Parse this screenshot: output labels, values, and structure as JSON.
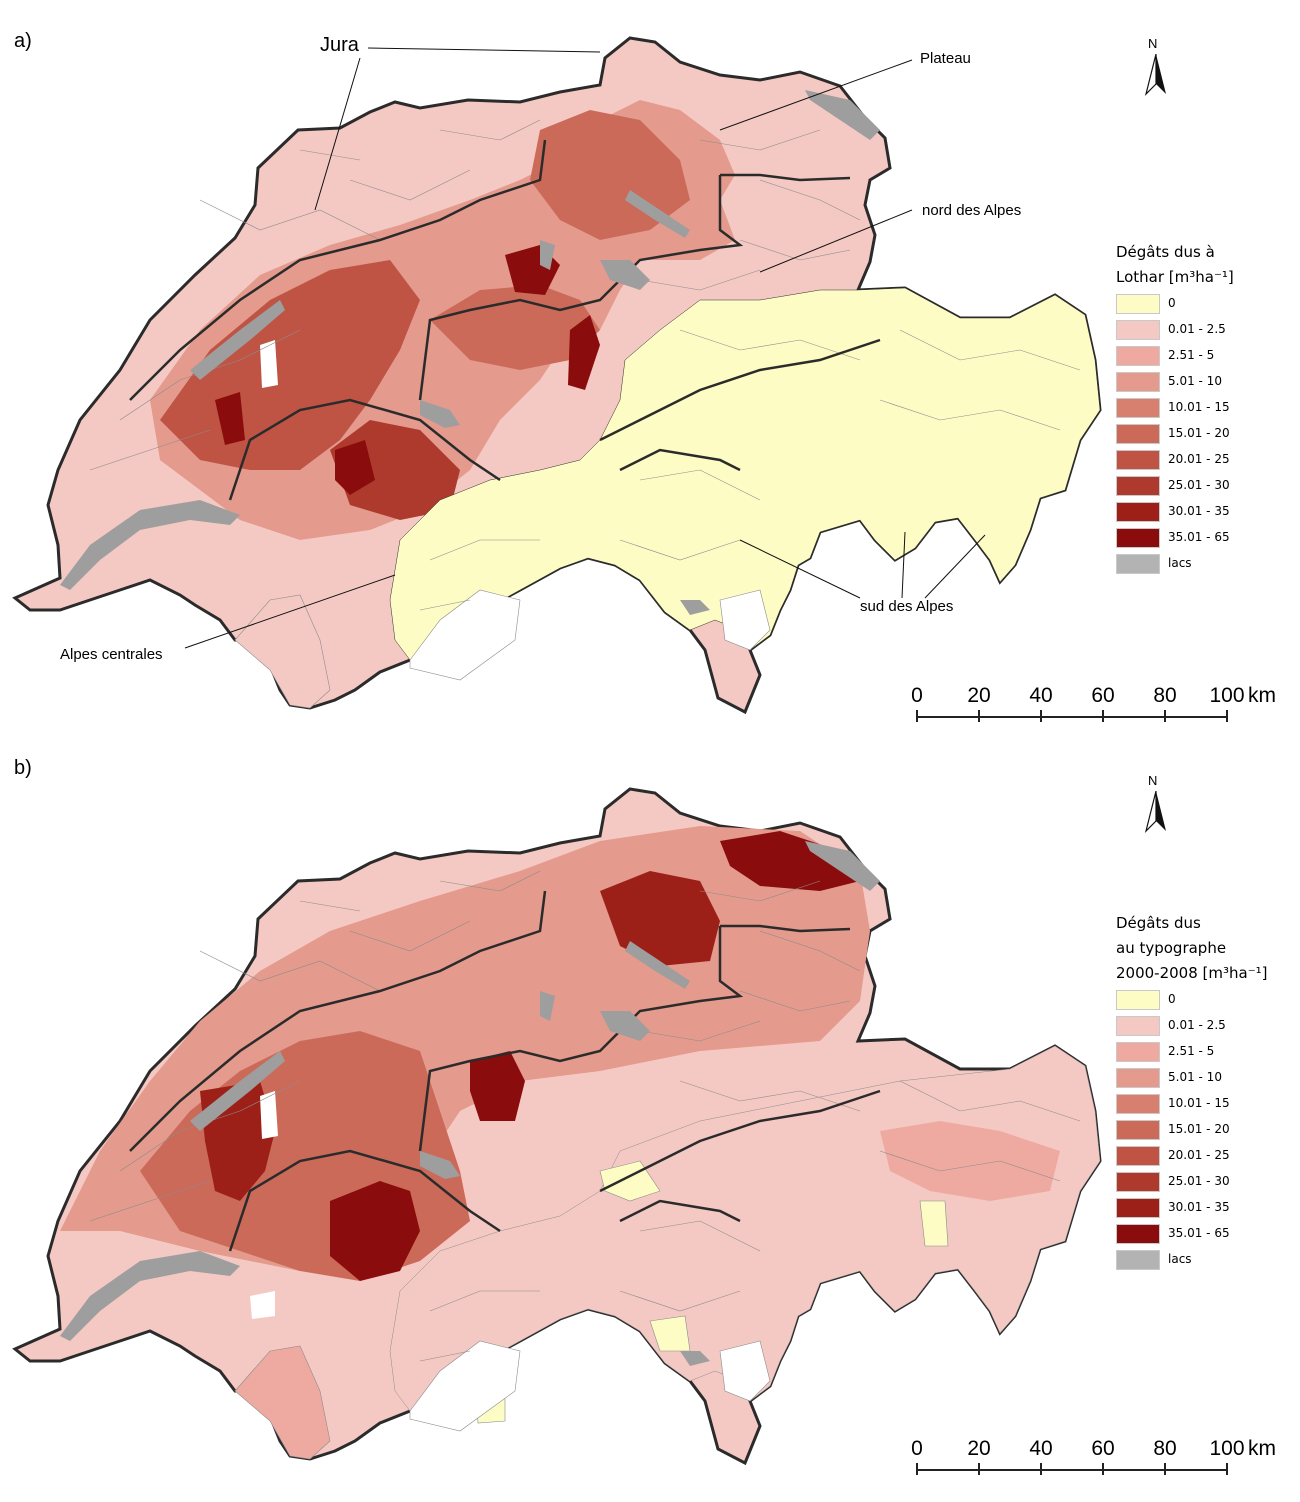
{
  "panels": [
    {
      "label": "a)",
      "legend": {
        "title_lines": [
          "Dégâts dus à",
          "Lothar [m³ha⁻¹]"
        ],
        "classes": [
          "0",
          "0.01 - 2.5",
          "2.51 - 5",
          "5.01 - 10",
          "10.01 - 15",
          "15.01 - 20",
          "20.01 - 25",
          "25.01 - 30",
          "30.01 - 35",
          "35.01 - 65",
          "lacs"
        ]
      },
      "region_labels": {
        "jura": "Jura",
        "plateau": "Plateau",
        "nord_alpes": "nord des Alpes",
        "alpes_centrales": "Alpes centrales",
        "sud_alpes": "sud des Alpes"
      }
    },
    {
      "label": "b)",
      "legend": {
        "title_lines": [
          "Dégâts dus",
          "au typographe",
          "2000-2008 [m³ha⁻¹]"
        ],
        "classes": [
          "0",
          "0.01 - 2.5",
          "2.51 - 5",
          "5.01 - 10",
          "10.01 - 15",
          "15.01 - 20",
          "20.01 - 25",
          "25.01 - 30",
          "30.01 - 35",
          "35.01 - 65",
          "lacs"
        ]
      }
    }
  ],
  "class_colors": [
    "#fdfcc4",
    "#f5c9c3",
    "#eeaaa0",
    "#e49a8d",
    "#d88070",
    "#cc6a5a",
    "#bf5445",
    "#ae3a2e",
    "#9d2018",
    "#8a0c0c",
    "#b3b3b3"
  ],
  "north_label": "N",
  "scale": {
    "ticks": [
      "0",
      "20",
      "40",
      "60",
      "80",
      "100"
    ],
    "unit": "km"
  },
  "colors": {
    "border": "#2b2b2b",
    "commune_line": "#8c8c8c",
    "lake": "#9e9e9e"
  }
}
